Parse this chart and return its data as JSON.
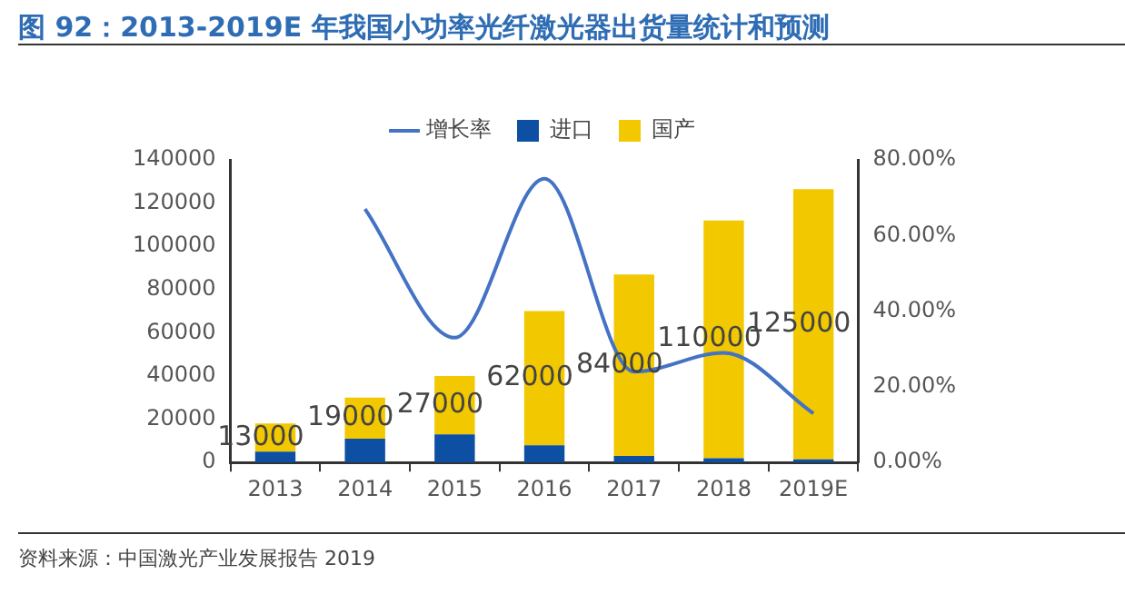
{
  "chart_data": {
    "type": "bar",
    "title": "图 92：2013-2019E 年我国小功率光纤激光器出货量统计和预测",
    "categories": [
      "2013",
      "2014",
      "2015",
      "2016",
      "2017",
      "2018",
      "2019E"
    ],
    "stacked": true,
    "series": [
      {
        "name": "进口",
        "color": "#0d4fa3",
        "values": [
          5000,
          11000,
          13000,
          8000,
          3000,
          2000,
          1500
        ]
      },
      {
        "name": "国产",
        "color": "#f2c800",
        "values": [
          13000,
          19000,
          27000,
          62000,
          84000,
          110000,
          125000
        ],
        "value_labels": [
          "13000",
          "19000",
          "27000",
          "62000",
          "84000",
          "110000",
          "125000"
        ]
      },
      {
        "name": "增长率",
        "type": "line",
        "axis": "y2",
        "color": "#4472c4",
        "marker": "none",
        "values": [
          null,
          67,
          33,
          75,
          24,
          29,
          13
        ]
      }
    ],
    "ylim": [
      0,
      140000
    ],
    "yticks": [
      0,
      20000,
      40000,
      60000,
      80000,
      100000,
      120000,
      140000
    ],
    "y2lim": [
      0,
      80
    ],
    "y2ticks": [
      {
        "value": 0,
        "label": "0.00%"
      },
      {
        "value": 20,
        "label": "20.00%"
      },
      {
        "value": 40,
        "label": "40.00%"
      },
      {
        "value": 60,
        "label": "60.00%"
      },
      {
        "value": 80,
        "label": "80.00%"
      }
    ],
    "grid": false,
    "legend": "top",
    "annotations": [
      "资料来源：中国激光产业发展报告 2019"
    ]
  }
}
